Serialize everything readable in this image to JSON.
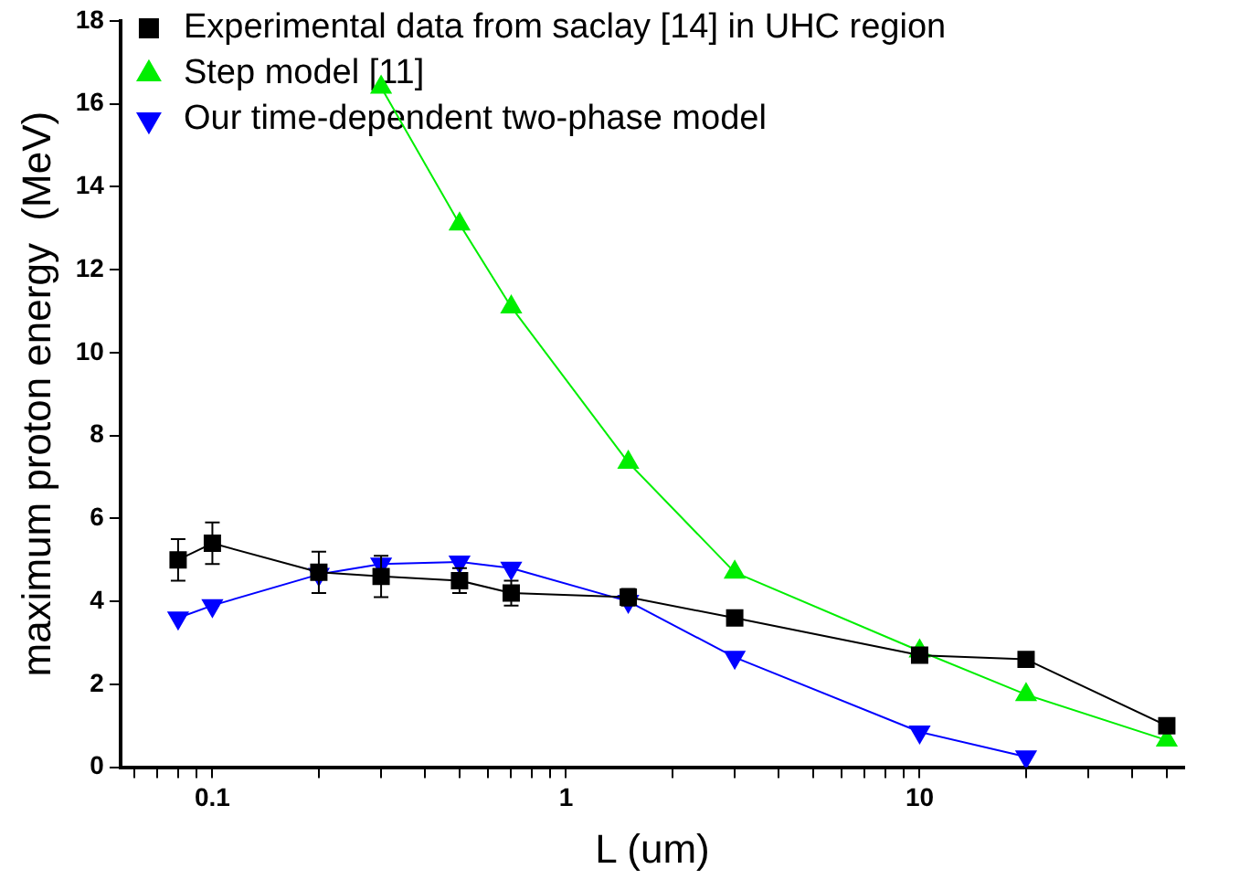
{
  "chart_data": {
    "type": "line",
    "xlabel": "L (um)",
    "ylabel": "maximum proton energy  (MeV)",
    "log": "x",
    "xlim": [
      0.055,
      56
    ],
    "xticks": [
      {
        "value": 0.06,
        "label": null
      },
      {
        "value": 0.07,
        "label": null
      },
      {
        "value": 0.08,
        "label": null
      },
      {
        "value": 0.09,
        "label": null
      },
      0.1,
      {
        "value": 0.2,
        "label": null
      },
      {
        "value": 0.3,
        "label": null
      },
      {
        "value": 0.4,
        "label": null
      },
      {
        "value": 0.5,
        "label": null
      },
      {
        "value": 0.6,
        "label": null
      },
      {
        "value": 0.7,
        "label": null
      },
      {
        "value": 0.8,
        "label": null
      },
      {
        "value": 0.9,
        "label": null
      },
      1,
      {
        "value": 2,
        "label": null
      },
      {
        "value": 3,
        "label": null
      },
      {
        "value": 4,
        "label": null
      },
      {
        "value": 5,
        "label": null
      },
      {
        "value": 6,
        "label": null
      },
      {
        "value": 7,
        "label": null
      },
      {
        "value": 8,
        "label": null
      },
      {
        "value": 9,
        "label": null
      },
      10,
      {
        "value": 20,
        "label": null
      },
      {
        "value": 30,
        "label": null
      },
      {
        "value": 40,
        "label": null
      },
      {
        "value": 50,
        "label": null
      }
    ],
    "ylim": [
      0,
      18
    ],
    "yticks": [
      0,
      2,
      4,
      6,
      8,
      10,
      12,
      14,
      16,
      18
    ],
    "grid": false,
    "legend": "top left",
    "line_style": "solid",
    "series": [
      {
        "name": "Experimental data from saclay [14] in UHC region",
        "color": "#000000",
        "marker": "square",
        "x": [
          0.08,
          0.1,
          0.2,
          0.3,
          0.5,
          0.7,
          1.5,
          3,
          10,
          20,
          50
        ],
        "values": [
          5.0,
          5.4,
          4.7,
          4.6,
          4.5,
          4.2,
          4.1,
          3.6,
          2.7,
          2.6,
          1.0
        ],
        "errors": [
          0.5,
          0.5,
          0.5,
          0.5,
          0.3,
          0.3,
          0.2,
          null,
          null,
          null,
          null
        ]
      },
      {
        "name": "Step model [11]",
        "color": "#00ee00",
        "marker": "triangle",
        "x": [
          0.3,
          0.5,
          0.7,
          1.5,
          3,
          10,
          20,
          50
        ],
        "values": [
          16.4,
          13.1,
          11.1,
          7.35,
          4.7,
          2.8,
          1.75,
          0.65
        ]
      },
      {
        "name": "Our time-dependent two-phase model",
        "color": "#0000ff",
        "marker": "triangle-down",
        "x": [
          0.08,
          0.1,
          0.2,
          0.3,
          0.5,
          0.7,
          1.5,
          3,
          10,
          20
        ],
        "values": [
          3.6,
          3.9,
          4.65,
          4.9,
          4.95,
          4.8,
          4.0,
          2.65,
          0.85,
          0.25
        ]
      }
    ]
  }
}
